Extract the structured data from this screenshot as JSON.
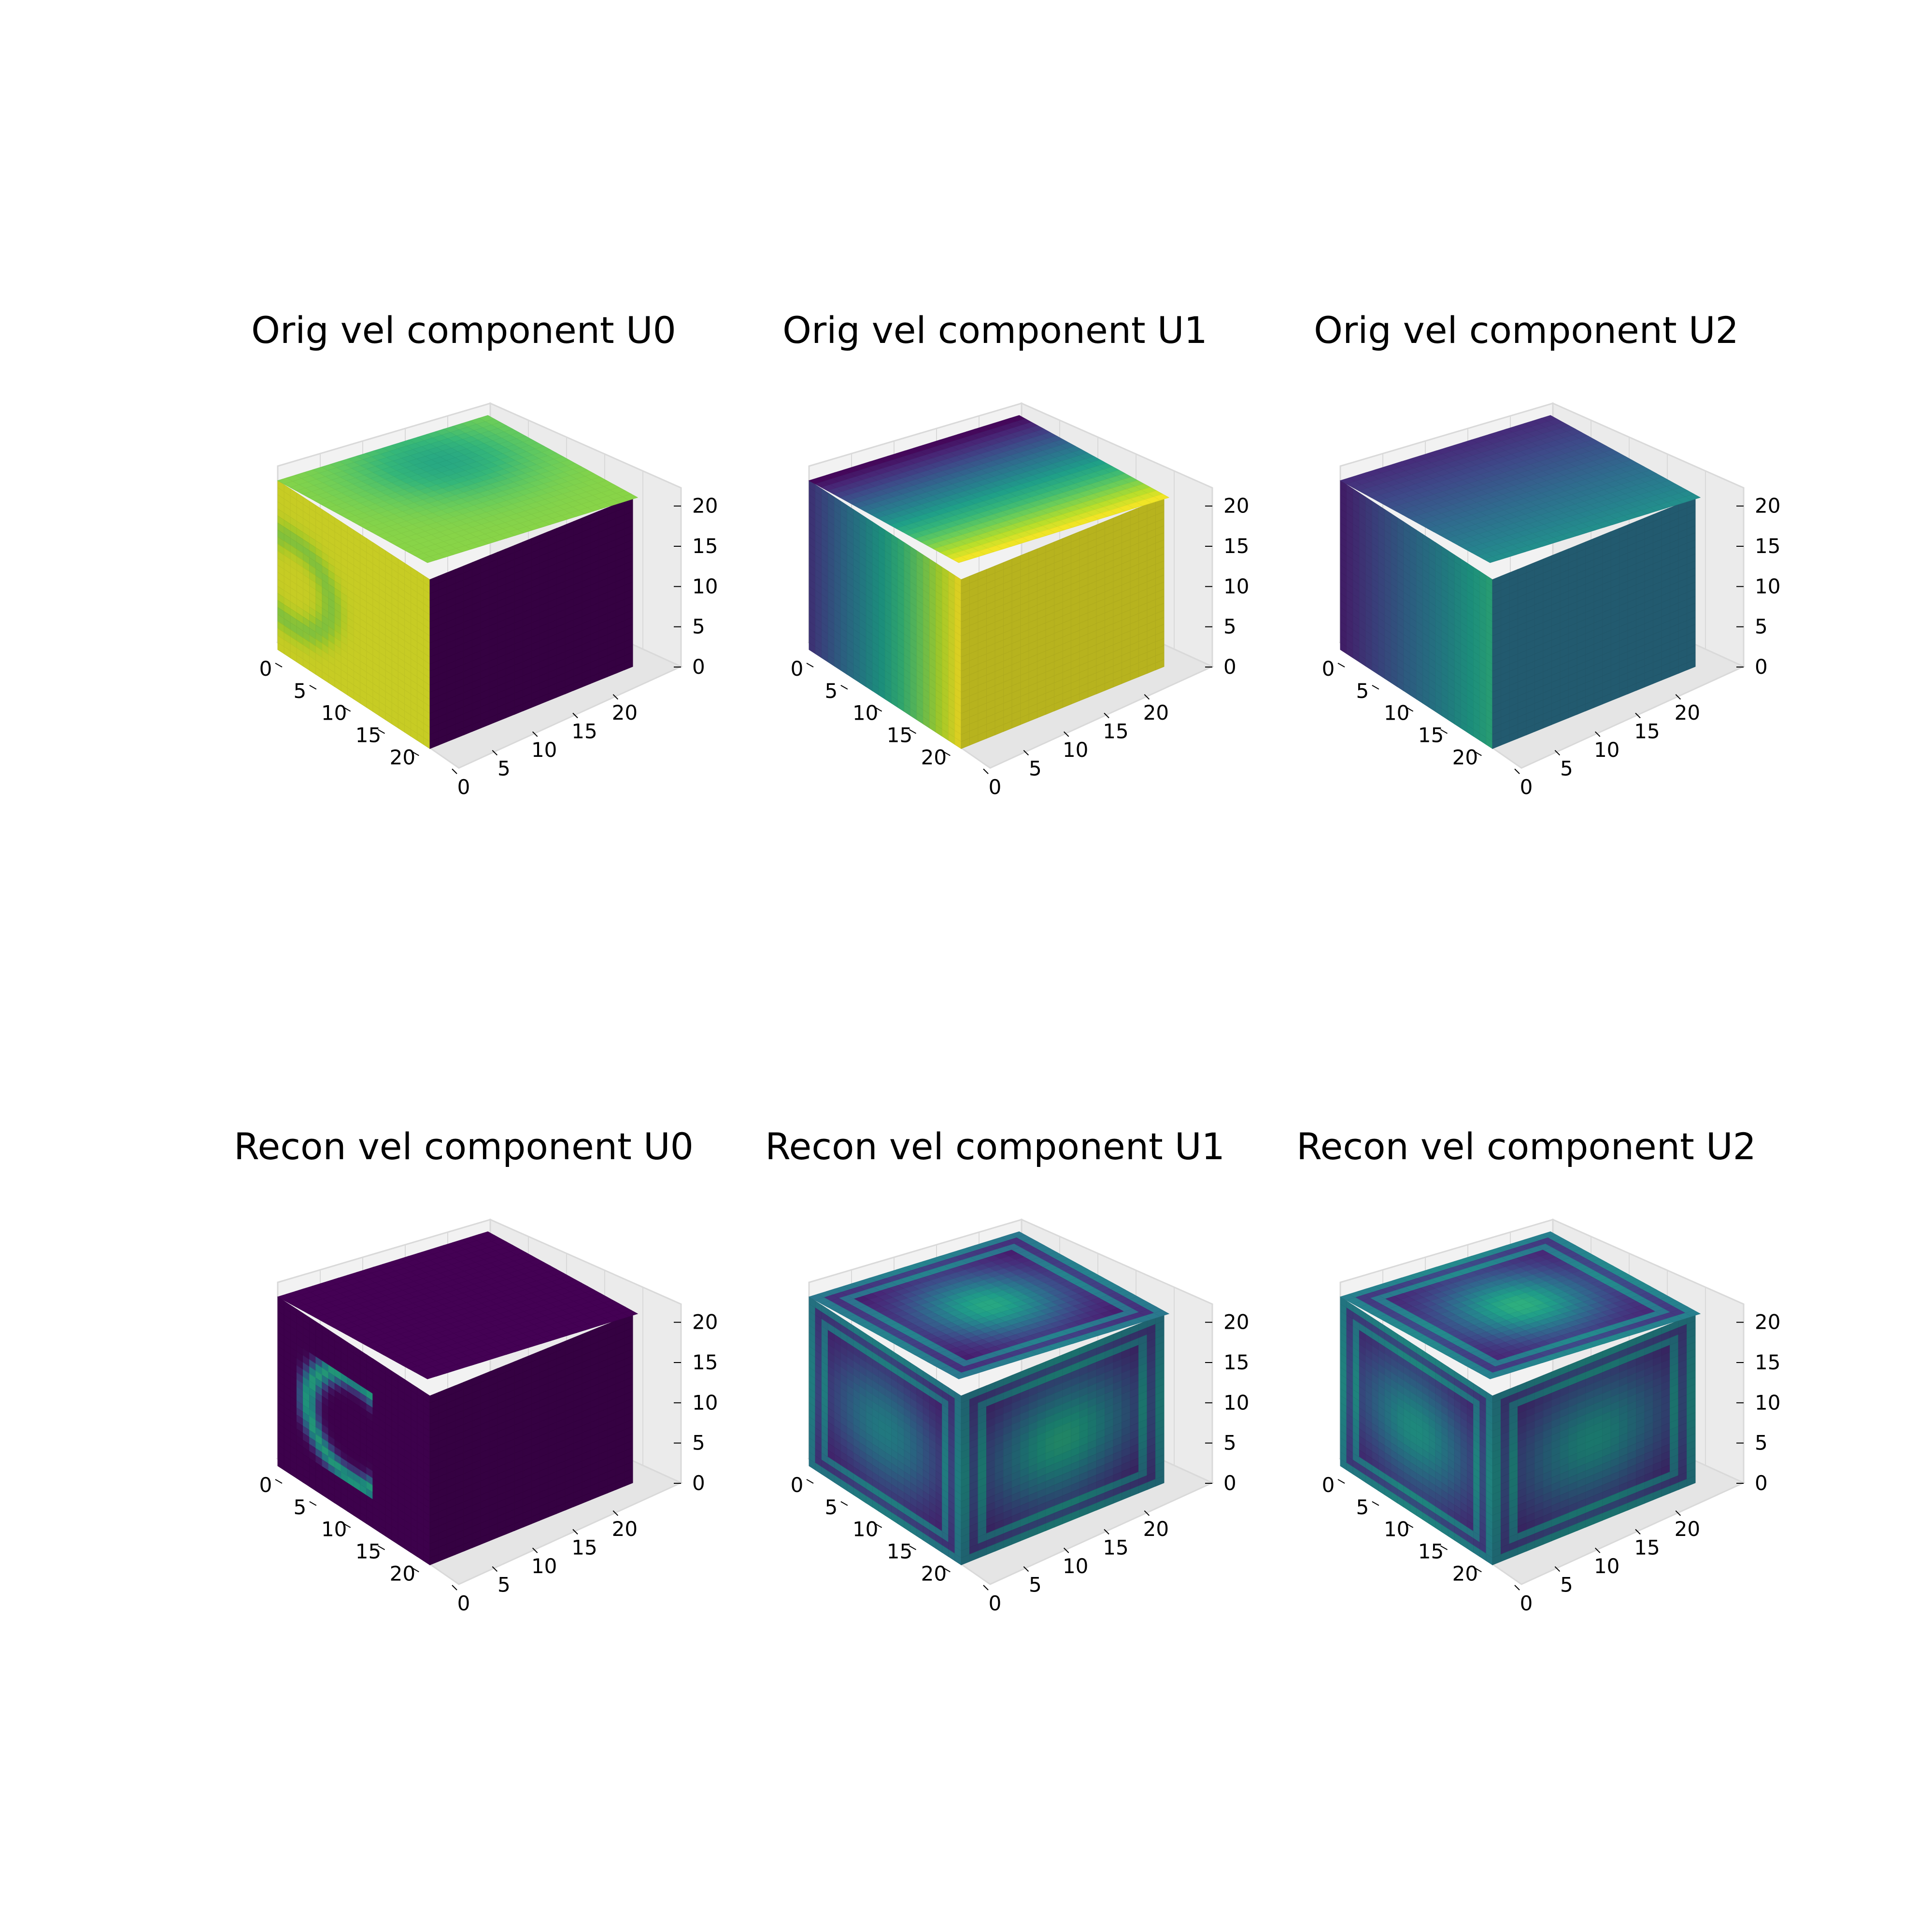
{
  "figure": {
    "background": "#ffffff",
    "colormap": "viridis",
    "pane_color": "#f2f2f2",
    "grid_color": "#d9d9d9"
  },
  "chart_data": [
    {
      "type": "voxel-cube",
      "title": "Orig vel component U0",
      "xticks": [
        "0",
        "5",
        "10",
        "15",
        "20"
      ],
      "yticks": [
        "0",
        "5",
        "10",
        "15",
        "20"
      ],
      "zticks": [
        "0",
        "5",
        "10",
        "15",
        "20"
      ],
      "grid_size": 24,
      "faces": {
        "top": {
          "pattern": "blob",
          "base": 0.82,
          "amp": -0.22,
          "cx": 0.25,
          "cy": 0.4,
          "r": 0.35
        },
        "left": {
          "pattern": "ring",
          "base": 0.95,
          "amp": -0.12,
          "cx": 0.1,
          "cy": 0.55,
          "r": 0.25
        },
        "right": {
          "pattern": "flat",
          "base": 0.0,
          "amp": 0.0
        }
      }
    },
    {
      "type": "voxel-cube",
      "title": "Orig vel component U1",
      "xticks": [
        "0",
        "5",
        "10",
        "15",
        "20"
      ],
      "yticks": [
        "0",
        "5",
        "10",
        "15",
        "20"
      ],
      "zticks": [
        "0",
        "5",
        "10",
        "15",
        "20"
      ],
      "grid_size": 24,
      "faces": {
        "top": {
          "pattern": "gradient-u",
          "base": 0.0,
          "amp": 1.0
        },
        "left": {
          "pattern": "gradient-u",
          "base": 0.15,
          "amp": 0.85
        },
        "right": {
          "pattern": "flat",
          "base": 0.97,
          "amp": 0.0
        }
      }
    },
    {
      "type": "voxel-cube",
      "title": "Orig vel component U2",
      "xticks": [
        "0",
        "5",
        "10",
        "15",
        "20"
      ],
      "yticks": [
        "0",
        "5",
        "10",
        "15",
        "20"
      ],
      "zticks": [
        "0",
        "5",
        "10",
        "15",
        "20"
      ],
      "grid_size": 24,
      "faces": {
        "top": {
          "pattern": "gradient-u",
          "base": 0.12,
          "amp": 0.38
        },
        "left": {
          "pattern": "gradient-u",
          "base": 0.08,
          "amp": 0.55
        },
        "right": {
          "pattern": "flat",
          "base": 0.38,
          "amp": 0.0
        }
      }
    },
    {
      "type": "voxel-cube",
      "title": "Recon vel component U0",
      "xticks": [
        "0",
        "5",
        "10",
        "15",
        "20"
      ],
      "yticks": [
        "0",
        "5",
        "10",
        "15",
        "20"
      ],
      "zticks": [
        "0",
        "5",
        "10",
        "15",
        "20"
      ],
      "grid_size": 24,
      "faces": {
        "top": {
          "pattern": "flat",
          "base": 0.0,
          "amp": 0.0
        },
        "left": {
          "pattern": "ring-window",
          "base": 0.0,
          "amp": 0.6,
          "cx": 0.5,
          "cy": 0.5,
          "r": 0.3
        },
        "right": {
          "pattern": "flat",
          "base": 0.0,
          "amp": 0.0
        }
      }
    },
    {
      "type": "voxel-cube",
      "title": "Recon vel component U1",
      "xticks": [
        "0",
        "5",
        "10",
        "15",
        "20"
      ],
      "yticks": [
        "0",
        "5",
        "10",
        "15",
        "20"
      ],
      "zticks": [
        "0",
        "5",
        "10",
        "15",
        "20"
      ],
      "grid_size": 24,
      "faces": {
        "top": {
          "pattern": "frame-blob",
          "base": 0.05,
          "amp": 0.55,
          "cx": 0.5,
          "cy": 0.5,
          "r": 0.3
        },
        "left": {
          "pattern": "frame-blob",
          "base": 0.06,
          "amp": 0.4,
          "cx": 0.5,
          "cy": 0.5,
          "r": 0.35
        },
        "right": {
          "pattern": "frame-blob",
          "base": 0.06,
          "amp": 0.55,
          "cx": 0.5,
          "cy": 0.5,
          "r": 0.35
        }
      }
    },
    {
      "type": "voxel-cube",
      "title": "Recon vel component U2",
      "xticks": [
        "0",
        "5",
        "10",
        "15",
        "20"
      ],
      "yticks": [
        "0",
        "5",
        "10",
        "15",
        "20"
      ],
      "zticks": [
        "0",
        "5",
        "10",
        "15",
        "20"
      ],
      "grid_size": 24,
      "faces": {
        "top": {
          "pattern": "frame-blob",
          "base": 0.08,
          "amp": 0.55,
          "cx": 0.5,
          "cy": 0.5,
          "r": 0.3
        },
        "left": {
          "pattern": "frame-blob",
          "base": 0.08,
          "amp": 0.45,
          "cx": 0.5,
          "cy": 0.5,
          "r": 0.35
        },
        "right": {
          "pattern": "frame-blob",
          "base": 0.08,
          "amp": 0.45,
          "cx": 0.5,
          "cy": 0.5,
          "r": 0.35
        }
      }
    }
  ]
}
